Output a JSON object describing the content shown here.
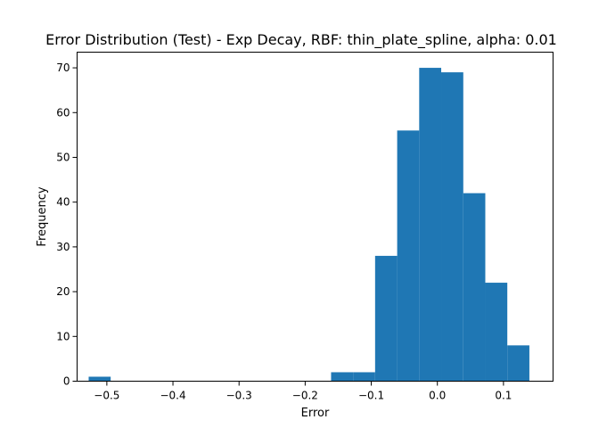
{
  "chart_data": {
    "type": "bar",
    "title": "Error Distribution (Test) - Exp Decay, RBF: thin_plate_spline, alpha: 0.01",
    "xlabel": "Error",
    "ylabel": "Frequency",
    "xlim": [
      -0.545,
      0.175
    ],
    "ylim": [
      0,
      73.5
    ],
    "x_ticks": [
      -0.5,
      -0.4,
      -0.3,
      -0.2,
      -0.1,
      0.0,
      0.1
    ],
    "x_tick_labels": [
      "−0.5",
      "−0.4",
      "−0.3",
      "−0.2",
      "−0.1",
      "0.0",
      "0.1"
    ],
    "y_ticks": [
      0,
      10,
      20,
      30,
      40,
      50,
      60,
      70
    ],
    "y_tick_labels": [
      "0",
      "10",
      "20",
      "30",
      "40",
      "50",
      "60",
      "70"
    ],
    "bar_color": "#1f77b4",
    "grid": false,
    "bins": [
      {
        "x0": -0.5275,
        "x1": -0.4942,
        "count": 1
      },
      {
        "x0": -0.4942,
        "x1": -0.4608,
        "count": 0
      },
      {
        "x0": -0.4608,
        "x1": -0.4275,
        "count": 0
      },
      {
        "x0": -0.4275,
        "x1": -0.3942,
        "count": 0
      },
      {
        "x0": -0.3942,
        "x1": -0.3608,
        "count": 0
      },
      {
        "x0": -0.3608,
        "x1": -0.3275,
        "count": 0
      },
      {
        "x0": -0.3275,
        "x1": -0.2942,
        "count": 0
      },
      {
        "x0": -0.2942,
        "x1": -0.2608,
        "count": 0
      },
      {
        "x0": -0.2608,
        "x1": -0.2275,
        "count": 0
      },
      {
        "x0": -0.2275,
        "x1": -0.1942,
        "count": 0
      },
      {
        "x0": -0.1942,
        "x1": -0.1608,
        "count": 0
      },
      {
        "x0": -0.1608,
        "x1": -0.1275,
        "count": 2
      },
      {
        "x0": -0.1275,
        "x1": -0.0942,
        "count": 2
      },
      {
        "x0": -0.0942,
        "x1": -0.0608,
        "count": 28
      },
      {
        "x0": -0.0608,
        "x1": -0.0275,
        "count": 56
      },
      {
        "x0": -0.0275,
        "x1": 0.0058,
        "count": 70
      },
      {
        "x0": 0.0058,
        "x1": 0.0392,
        "count": 69
      },
      {
        "x0": 0.0392,
        "x1": 0.0725,
        "count": 42
      },
      {
        "x0": 0.0725,
        "x1": 0.1058,
        "count": 22
      },
      {
        "x0": 0.1058,
        "x1": 0.1392,
        "count": 8
      }
    ]
  }
}
